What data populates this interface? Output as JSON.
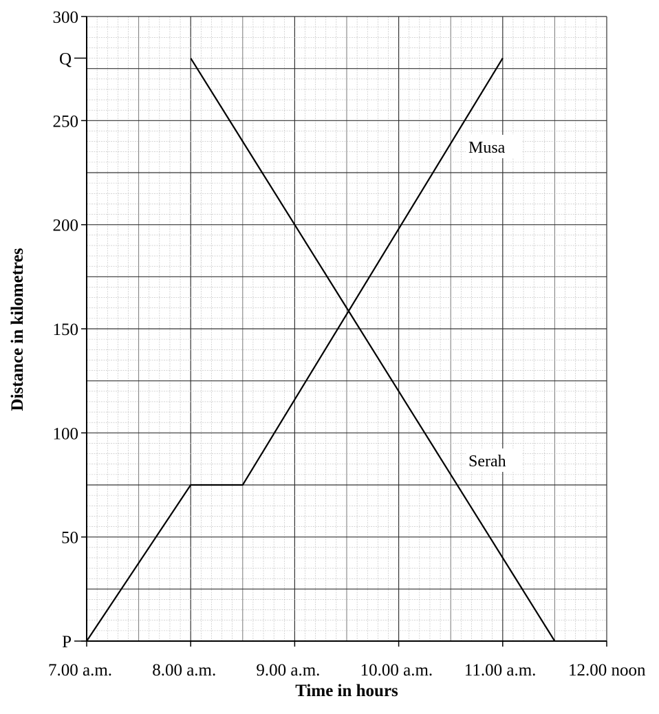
{
  "chart_data": {
    "type": "line",
    "title": "",
    "xlabel": "Time in hours",
    "ylabel": "Distance in kilometres",
    "xlim": [
      7,
      12
    ],
    "ylim": [
      0,
      300
    ],
    "x_ticks": [
      7,
      8,
      9,
      10,
      11,
      12
    ],
    "x_tick_labels": [
      "7.00 a.m.",
      "8.00 a.m.",
      "9.00 a.m.",
      "10.00 a.m.",
      "11.00 a.m.",
      "12.00 noon"
    ],
    "y_ticks": [
      0,
      50,
      100,
      150,
      200,
      250,
      300
    ],
    "y_tick_labels": [
      "",
      "50",
      "100",
      "150",
      "200",
      "250",
      "300"
    ],
    "point_labels": [
      {
        "text": "P",
        "y": 0
      },
      {
        "text": "Q",
        "y": 280
      }
    ],
    "grid": true,
    "series": [
      {
        "name": "Musa",
        "x": [
          7,
          8,
          8.5,
          11
        ],
        "y": [
          0,
          75,
          75,
          280
        ]
      },
      {
        "name": "Serah",
        "x": [
          8,
          11.5
        ],
        "y": [
          280,
          0
        ]
      }
    ]
  }
}
